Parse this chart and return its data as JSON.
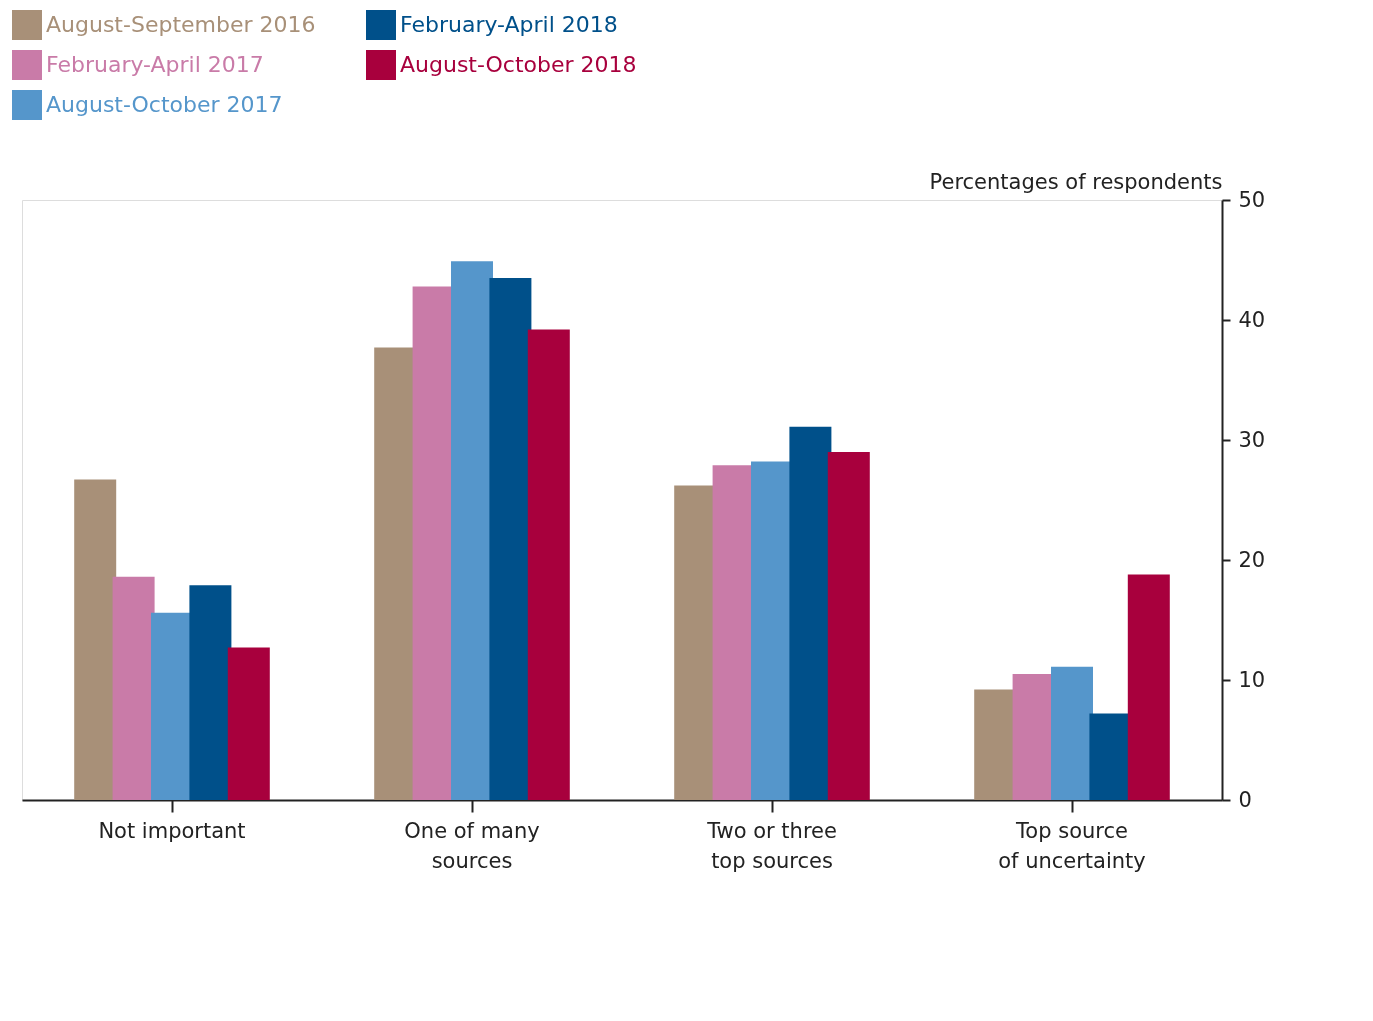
{
  "chart_data": {
    "type": "bar",
    "categories": [
      "Not important",
      "One of many\nsources",
      "Two or three\ntop sources",
      "Top source\nof uncertainty"
    ],
    "ylabel": "Percentages of respondents",
    "ylim": [
      0,
      50
    ],
    "yticks": [
      0,
      10,
      20,
      30,
      40,
      50
    ],
    "grid": false,
    "legend": "top left",
    "series": [
      {
        "name": "August-September 2016",
        "color": "#a89078",
        "values": [
          26.7,
          37.7,
          26.2,
          9.2
        ]
      },
      {
        "name": "February-April 2017",
        "color": "#c97ba8",
        "values": [
          18.6,
          42.8,
          27.9,
          10.5
        ]
      },
      {
        "name": "August-October 2017",
        "color": "#5596cb",
        "values": [
          15.6,
          44.9,
          28.2,
          11.1
        ]
      },
      {
        "name": "February-April 2018",
        "color": "#00508a",
        "values": [
          17.9,
          43.5,
          31.1,
          7.2
        ]
      },
      {
        "name": "August-October 2018",
        "color": "#a8003d",
        "values": [
          12.7,
          39.2,
          29.0,
          18.8
        ]
      }
    ]
  }
}
